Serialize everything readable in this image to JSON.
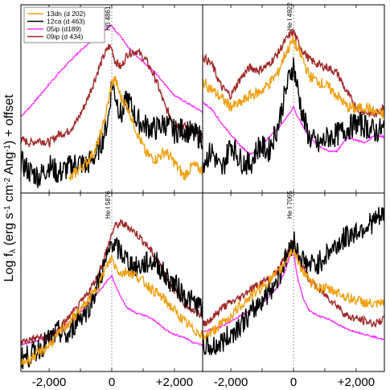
{
  "chart_data": {
    "type": "line",
    "ylabel": "Log f",
    "ylabel_sub": "λ",
    "ylabel_tail": " (erg s",
    "ylabel_full_parts": [
      "Log f",
      "λ",
      " (erg s",
      "-1",
      " cm",
      "-2",
      " Ang",
      "-1",
      ") + offset"
    ],
    "x_tick_labels": [
      "-2,000",
      "0",
      "+2,000"
    ],
    "xlim": [
      -2900,
      2900
    ],
    "grid": false,
    "legend_position": "top-left",
    "series_colors": {
      "13dn": "#f0a010",
      "12ca": "#000000",
      "05ip": "#ff33ff",
      "09ip": "#a02828"
    },
    "legend": [
      {
        "label": "13dn (d 202)",
        "color": "#f0a010"
      },
      {
        "label": "12ca (d 463)",
        "color": "#000000"
      },
      {
        "label": "05ip (d189)",
        "color": "#ff33ff"
      },
      {
        "label": "09ip (d 434)",
        "color": "#a02828"
      }
    ],
    "panels": [
      {
        "line_label": "Hβ 4861",
        "series": [
          {
            "key": "05ip",
            "x": [
              -2900,
              -2600,
              -2300,
              -2000,
              -1700,
              -1400,
              -1100,
              -800,
              -500,
              -300,
              -100,
              0,
              100,
              300,
              500,
              800,
              1100,
              1400,
              1700,
              2000,
              2300,
              2600,
              2900
            ],
            "y": [
              0.55,
              0.62,
              0.7,
              0.78,
              0.86,
              0.93,
              1.0,
              1.06,
              1.12,
              1.16,
              1.19,
              1.2,
              1.17,
              1.12,
              1.05,
              0.98,
              0.92,
              0.86,
              0.78,
              0.7,
              0.66,
              0.62,
              0.58
            ]
          },
          {
            "key": "09ip",
            "x": [
              -2900,
              -2600,
              -2300,
              -2000,
              -1700,
              -1400,
              -1100,
              -800,
              -500,
              -300,
              -100,
              0,
              100,
              300,
              500,
              800,
              1100,
              1400,
              1700,
              2000,
              2300,
              2600,
              2900
            ],
            "y": [
              0.38,
              0.36,
              0.38,
              0.36,
              0.42,
              0.44,
              0.52,
              0.66,
              0.84,
              0.96,
              1.05,
              1.04,
              0.95,
              0.9,
              1.0,
              1.02,
              0.95,
              0.82,
              0.62,
              0.5,
              0.48,
              0.44,
              0.4
            ]
          },
          {
            "key": "12ca",
            "x": [
              -2900,
              -2600,
              -2300,
              -2000,
              -1700,
              -1400,
              -1100,
              -800,
              -500,
              -300,
              -100,
              0,
              100,
              300,
              500,
              800,
              1100,
              1400,
              1700,
              2000,
              2300,
              2600,
              2900
            ],
            "y": [
              0.22,
              0.15,
              0.12,
              0.2,
              0.14,
              0.18,
              0.22,
              0.2,
              0.28,
              0.38,
              0.55,
              0.8,
              0.72,
              0.55,
              0.68,
              0.52,
              0.48,
              0.46,
              0.5,
              0.44,
              0.46,
              0.42,
              0.4
            ]
          },
          {
            "key": "13dn",
            "x": [
              -2900,
              -2600,
              -2300,
              -2000,
              -1700,
              -1400,
              -1100,
              -800,
              -500,
              -300,
              -100,
              0,
              100,
              300,
              500,
              800,
              1100,
              1400,
              1700,
              2000,
              2300,
              2600,
              2900
            ],
            "y": [
              null,
              null,
              null,
              null,
              null,
              0.08,
              0.16,
              0.22,
              0.32,
              0.46,
              0.66,
              0.78,
              0.82,
              0.68,
              0.62,
              0.44,
              0.28,
              0.24,
              0.3,
              0.22,
              0.12,
              0.2,
              0.16
            ]
          }
        ]
      },
      {
        "line_label": "He I 4922",
        "series": [
          {
            "key": "05ip",
            "x": [
              -2900,
              -2600,
              -2300,
              -2000,
              -1700,
              -1400,
              -1100,
              -800,
              -500,
              -300,
              -100,
              0,
              100,
              300,
              500,
              800,
              1100,
              1400,
              1700,
              2000,
              2300,
              2600,
              2900
            ],
            "y": [
              0.65,
              0.6,
              0.5,
              0.42,
              0.34,
              0.28,
              0.3,
              0.4,
              0.46,
              0.52,
              0.58,
              0.62,
              0.56,
              0.48,
              0.4,
              0.34,
              0.3,
              0.3,
              0.4,
              0.38,
              0.36,
              0.42,
              0.4
            ]
          },
          {
            "key": "09ip",
            "x": [
              -2900,
              -2600,
              -2300,
              -2000,
              -1700,
              -1400,
              -1100,
              -800,
              -500,
              -300,
              -100,
              0,
              100,
              300,
              500,
              800,
              1100,
              1400,
              1700,
              2000,
              2300,
              2600,
              2900
            ],
            "y": [
              0.98,
              0.92,
              0.76,
              0.7,
              0.82,
              0.9,
              0.88,
              0.92,
              1.0,
              1.08,
              1.14,
              1.16,
              1.1,
              1.02,
              0.96,
              0.92,
              0.9,
              0.86,
              0.72,
              0.62,
              0.58,
              0.56,
              0.62
            ]
          },
          {
            "key": "12ca",
            "x": [
              -2900,
              -2600,
              -2300,
              -2000,
              -1700,
              -1400,
              -1100,
              -800,
              -500,
              -300,
              -100,
              0,
              100,
              300,
              500,
              800,
              1100,
              1400,
              1700,
              2000,
              2300,
              2600,
              2900
            ],
            "y": [
              0.22,
              0.3,
              0.15,
              0.36,
              0.24,
              0.2,
              0.34,
              0.3,
              0.48,
              0.68,
              0.86,
              0.92,
              0.78,
              0.55,
              0.4,
              0.34,
              0.4,
              0.42,
              0.46,
              0.5,
              0.48,
              0.44,
              0.46
            ]
          },
          {
            "key": "13dn",
            "x": [
              -2900,
              -2600,
              -2300,
              -2000,
              -1700,
              -1400,
              -1100,
              -800,
              -500,
              -300,
              -100,
              0,
              100,
              300,
              500,
              800,
              1100,
              1400,
              1700,
              2000,
              2300,
              2600,
              2900
            ],
            "y": [
              0.8,
              0.74,
              0.68,
              0.62,
              0.64,
              0.7,
              0.72,
              0.78,
              0.86,
              0.98,
              1.06,
              1.1,
              1.04,
              0.96,
              0.84,
              0.8,
              0.76,
              0.7,
              0.62,
              0.6,
              0.62,
              0.58,
              0.56
            ]
          }
        ]
      },
      {
        "line_label": "He I 5876",
        "series": [
          {
            "key": "05ip",
            "x": [
              -2900,
              -2600,
              -2300,
              -2000,
              -1700,
              -1400,
              -1100,
              -800,
              -500,
              -300,
              -100,
              0,
              100,
              300,
              500,
              800,
              1100,
              1400,
              1700,
              2000,
              2300,
              2600,
              2900
            ],
            "y": [
              0.2,
              0.22,
              0.24,
              0.28,
              0.32,
              0.36,
              0.42,
              0.5,
              0.58,
              0.64,
              0.7,
              0.72,
              0.66,
              0.56,
              0.48,
              0.44,
              0.42,
              0.38,
              0.32,
              0.28,
              0.26,
              0.22,
              0.2
            ]
          },
          {
            "key": "09ip",
            "x": [
              -2900,
              -2600,
              -2300,
              -2000,
              -1700,
              -1400,
              -1100,
              -800,
              -500,
              -300,
              -100,
              0,
              100,
              300,
              500,
              800,
              1100,
              1400,
              1700,
              2000,
              2300,
              2600,
              2900
            ],
            "y": [
              0.22,
              0.24,
              0.26,
              0.24,
              0.32,
              0.4,
              0.48,
              0.58,
              0.7,
              0.82,
              0.96,
              1.04,
              1.1,
              1.12,
              1.1,
              1.04,
              0.96,
              0.86,
              0.74,
              0.62,
              0.52,
              0.46,
              0.42
            ]
          },
          {
            "key": "12ca",
            "x": [
              -2900,
              -2600,
              -2300,
              -2000,
              -1700,
              -1400,
              -1100,
              -800,
              -500,
              -300,
              -100,
              0,
              100,
              300,
              500,
              800,
              1100,
              1400,
              1700,
              2000,
              2300,
              2600,
              2900
            ],
            "y": [
              0.1,
              0.12,
              0.18,
              0.24,
              0.3,
              0.26,
              0.4,
              0.46,
              0.62,
              0.76,
              0.88,
              1.0,
              0.94,
              0.9,
              0.84,
              0.78,
              0.82,
              0.84,
              0.72,
              0.66,
              0.58,
              0.52,
              0.48
            ]
          },
          {
            "key": "13dn",
            "x": [
              -2900,
              -2600,
              -2300,
              -2000,
              -1700,
              -1400,
              -1100,
              -800,
              -500,
              -300,
              -100,
              0,
              100,
              300,
              500,
              800,
              1100,
              1400,
              1700,
              2000,
              2300,
              2600,
              2900
            ],
            "y": [
              0.06,
              0.1,
              0.14,
              0.2,
              0.28,
              0.36,
              0.44,
              0.52,
              0.62,
              0.72,
              0.82,
              0.86,
              0.8,
              0.74,
              0.76,
              0.72,
              0.66,
              0.6,
              0.54,
              0.46,
              0.38,
              0.32,
              0.28
            ]
          }
        ]
      },
      {
        "line_label": "He I 7065",
        "series": [
          {
            "key": "05ip",
            "x": [
              -2900,
              -2600,
              -2300,
              -2000,
              -1700,
              -1400,
              -1100,
              -800,
              -500,
              -300,
              -100,
              0,
              100,
              300,
              500,
              800,
              1100,
              1400,
              1700,
              2000,
              2300,
              2600,
              2900
            ],
            "y": [
              0.3,
              0.32,
              0.34,
              0.38,
              0.42,
              0.46,
              0.5,
              0.56,
              0.64,
              0.74,
              0.88,
              0.92,
              0.74,
              0.56,
              0.46,
              0.42,
              0.4,
              0.36,
              0.32,
              0.3,
              0.28,
              0.26,
              0.24
            ]
          },
          {
            "key": "09ip",
            "x": [
              -2900,
              -2600,
              -2300,
              -2000,
              -1700,
              -1400,
              -1100,
              -800,
              -500,
              -300,
              -100,
              0,
              100,
              300,
              500,
              800,
              1100,
              1400,
              1700,
              2000,
              2300,
              2600,
              2900
            ],
            "y": [
              0.36,
              0.4,
              0.48,
              0.52,
              0.56,
              0.62,
              0.66,
              0.7,
              0.76,
              0.86,
              0.94,
              0.98,
              0.9,
              0.78,
              0.7,
              0.62,
              0.56,
              0.5,
              0.42,
              0.4,
              0.38,
              0.36,
              0.4
            ]
          },
          {
            "key": "12ca",
            "x": [
              -2900,
              -2600,
              -2300,
              -2000,
              -1700,
              -1400,
              -1100,
              -800,
              -500,
              -300,
              -100,
              0,
              100,
              300,
              500,
              800,
              1100,
              1400,
              1700,
              2000,
              2300,
              2600,
              2900
            ],
            "y": [
              0.2,
              0.18,
              0.22,
              0.28,
              0.36,
              0.42,
              0.52,
              0.6,
              0.7,
              0.82,
              0.94,
              1.0,
              0.92,
              0.84,
              0.8,
              0.82,
              0.9,
              0.96,
              1.02,
              1.06,
              1.1,
              1.14,
              1.18
            ]
          },
          {
            "key": "13dn",
            "x": [
              -2900,
              -2600,
              -2300,
              -2000,
              -1700,
              -1400,
              -1100,
              -800,
              -500,
              -300,
              -100,
              0,
              100,
              300,
              500,
              800,
              1100,
              1400,
              1700,
              2000,
              2300,
              2600,
              2900
            ],
            "y": [
              0.26,
              0.3,
              0.36,
              0.42,
              0.5,
              0.56,
              0.62,
              0.68,
              0.74,
              0.82,
              0.9,
              0.92,
              0.86,
              0.76,
              0.68,
              0.64,
              0.62,
              0.6,
              0.56,
              0.54,
              0.52,
              0.5,
              0.52
            ]
          }
        ]
      }
    ]
  }
}
